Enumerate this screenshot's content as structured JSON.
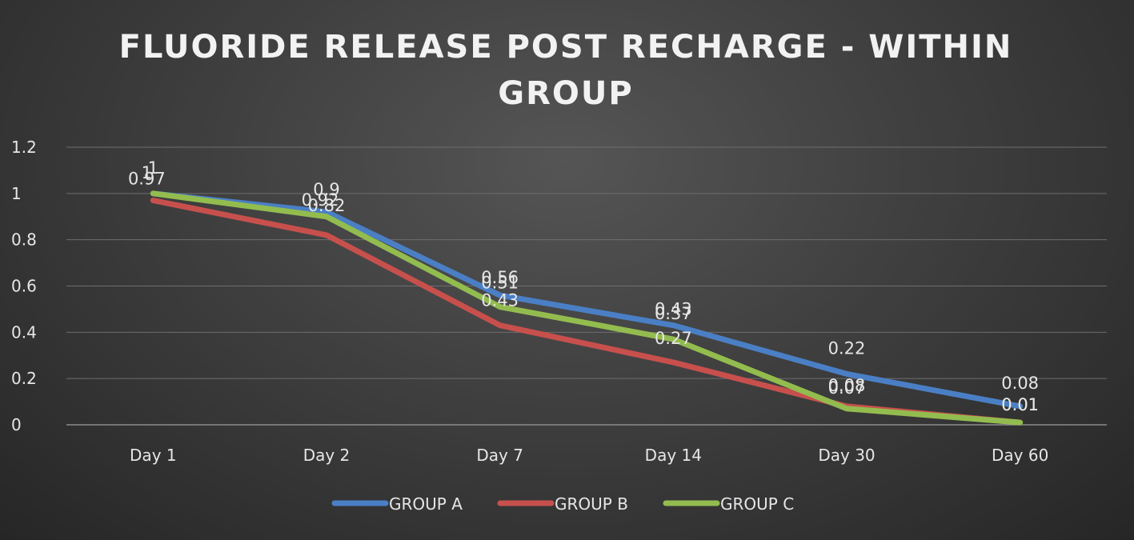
{
  "chart_data": {
    "type": "line",
    "title_lines": [
      "FLUORIDE RELEASE POST RECHARGE - WITHIN",
      "GROUP"
    ],
    "categories": [
      "Day 1",
      "Day 2",
      "Day 7",
      "Day 14",
      "Day 30",
      "Day 60"
    ],
    "ylim": [
      0,
      1.2
    ],
    "yticks": [
      "0",
      "0.2",
      "0.4",
      "0.6",
      "0.8",
      "1",
      "1.2"
    ],
    "ytick_values": [
      0,
      0.2,
      0.4,
      0.6,
      0.8,
      1,
      1.2
    ],
    "grid": true,
    "legend_position": "bottom",
    "series": [
      {
        "name": "GROUP A",
        "color": "#4a7fc5",
        "values": [
          1,
          0.92,
          0.56,
          0.43,
          0.22,
          0.08
        ]
      },
      {
        "name": "GROUP B",
        "color": "#c7504d",
        "values": [
          0.97,
          0.82,
          0.43,
          0.27,
          0.08,
          0.01
        ]
      },
      {
        "name": "GROUP C",
        "color": "#93bc4f",
        "values": [
          1,
          0.9,
          0.51,
          0.37,
          0.07,
          0.01
        ]
      }
    ],
    "data_labels": [
      [
        "1",
        "0.92",
        "0.56",
        "0.43",
        "0.22",
        "0.08"
      ],
      [
        "0.97",
        "0.82",
        "0.43",
        "0.27",
        "0.08",
        "0.01"
      ],
      [
        "1",
        "0.9",
        "0.51",
        "0.37",
        "0.07",
        "0.01"
      ]
    ]
  }
}
